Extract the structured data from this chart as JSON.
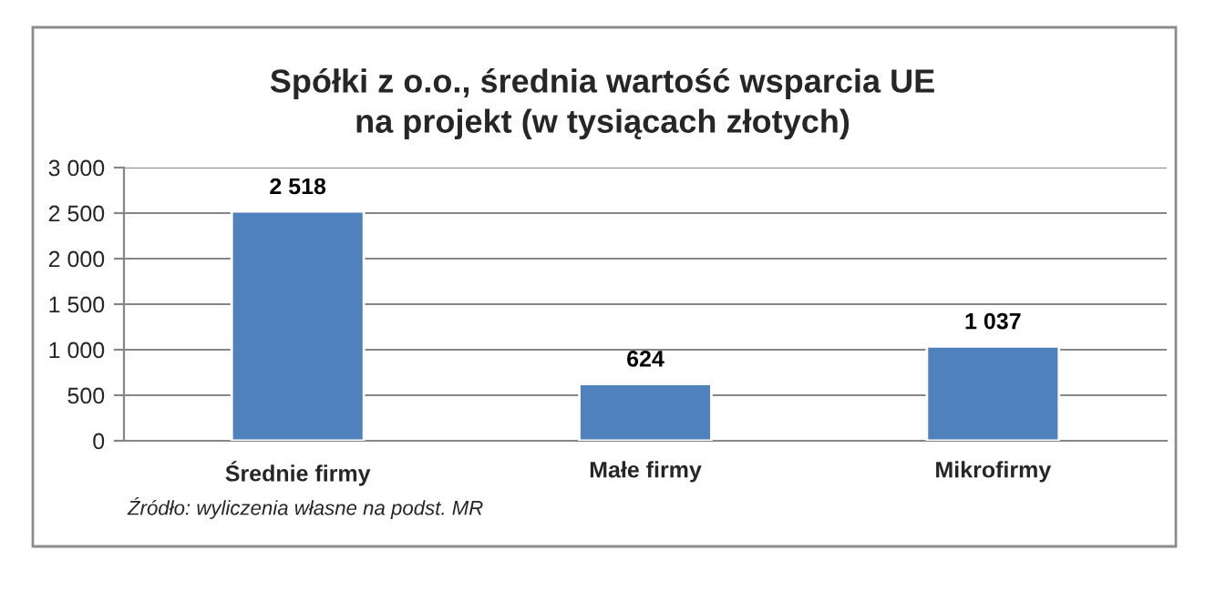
{
  "chart_data": {
    "type": "bar",
    "title": "Spółki z o.o., średnia wartość wsparcia UE\nna projekt (w tysiącach złotych)",
    "categories": [
      "Średnie firmy",
      "Małe firmy",
      "Mikrofirmy"
    ],
    "values": [
      2518,
      624,
      1037
    ],
    "value_labels": [
      "2 518",
      "624",
      "1 037"
    ],
    "color": "#4f81bd",
    "ylim": [
      0,
      3000
    ],
    "yticks": [
      {
        "value": 0,
        "label": "0"
      },
      {
        "value": 500,
        "label": "500"
      },
      {
        "value": 1000,
        "label": "1 000"
      },
      {
        "value": 1500,
        "label": "1 500"
      },
      {
        "value": 2000,
        "label": "2 000"
      },
      {
        "value": 2500,
        "label": "2 500"
      },
      {
        "value": 3000,
        "label": "3 000"
      }
    ],
    "grid": "y",
    "annotations": [
      "Źródło: wyliczenia własne na podst. MR"
    ]
  }
}
